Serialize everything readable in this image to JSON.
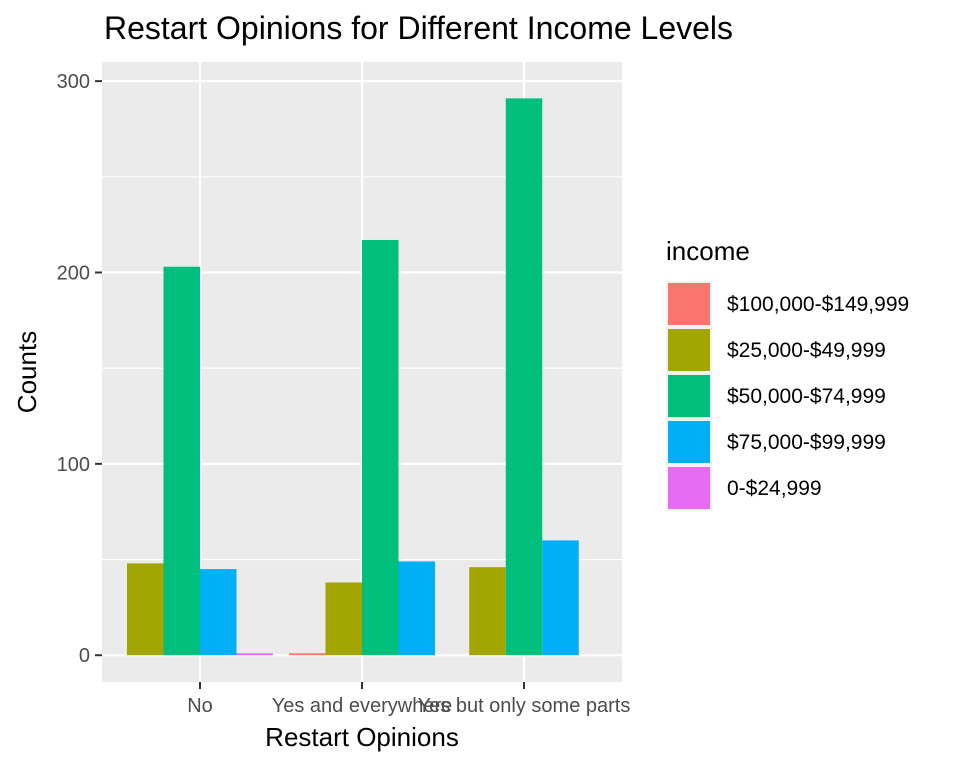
{
  "chart_data": {
    "type": "bar",
    "title": "Restart Opinions for Different Income Levels",
    "xlabel": "Restart Opinions",
    "ylabel": "Counts",
    "ylim": [
      -14,
      310
    ],
    "yticks": [
      0,
      100,
      200,
      300
    ],
    "categories": [
      "No",
      "Yes and everywhere",
      "Yes but only some parts"
    ],
    "legend_title": "income",
    "legend_position": "right",
    "grid": true,
    "series": [
      {
        "name": "$100,000-$149,999",
        "color": "#F8766D",
        "values": [
          null,
          1,
          null
        ]
      },
      {
        "name": "$25,000-$49,999",
        "color": "#A3A500",
        "values": [
          48,
          38,
          46
        ]
      },
      {
        "name": "$50,000-$74,999",
        "color": "#00BF7D",
        "values": [
          203,
          217,
          291
        ]
      },
      {
        "name": "$75,000-$99,999",
        "color": "#00B0F6",
        "values": [
          45,
          49,
          60
        ]
      },
      {
        "name": "0-$24,999",
        "color": "#E76BF3",
        "values": [
          1,
          null,
          null
        ]
      }
    ]
  }
}
